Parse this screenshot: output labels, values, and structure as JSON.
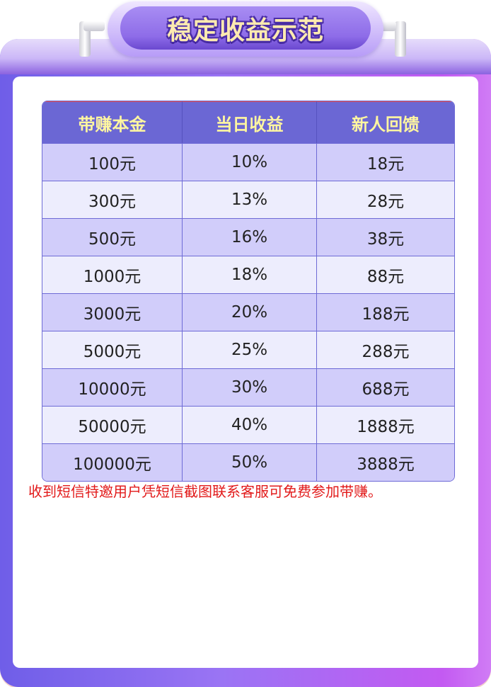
{
  "title": "稳定收益示范",
  "table": {
    "headers": [
      "带赚本金",
      "当日收益",
      "新人回馈"
    ],
    "rows": [
      [
        "100元",
        "10%",
        "18元"
      ],
      [
        "300元",
        "13%",
        "28元"
      ],
      [
        "500元",
        "16%",
        "38元"
      ],
      [
        "1000元",
        "18%",
        "88元"
      ],
      [
        "3000元",
        "20%",
        "188元"
      ],
      [
        "5000元",
        "25%",
        "288元"
      ],
      [
        "10000元",
        "30%",
        "688元"
      ],
      [
        "50000元",
        "40%",
        "1888元"
      ],
      [
        "100000元",
        "50%",
        "3888元"
      ]
    ]
  },
  "note": "收到短信特邀用户凭短信截图联系客服可免费参加带赚。",
  "colors": {
    "header_bg": "#6b67d4",
    "header_text": "#fff6a0",
    "note": "#e21a1a",
    "frame": "#9a74f4"
  }
}
